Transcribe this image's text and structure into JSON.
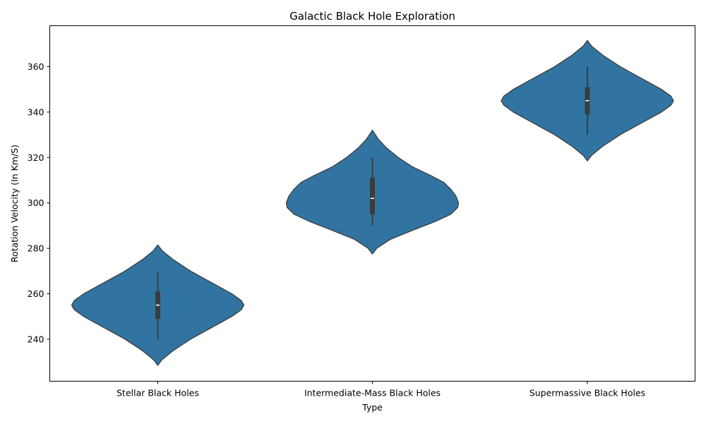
{
  "chart_data": {
    "type": "violin",
    "title": "Galactic Black Hole Exploration",
    "xlabel": "Type",
    "ylabel": "Rotation Velocity (In Km/S)",
    "ylim": [
      221.5,
      378
    ],
    "yticks": [
      240,
      260,
      280,
      300,
      320,
      340,
      360
    ],
    "categories": [
      "Stellar Black Holes",
      "Intermediate-Mass Black Holes",
      "Supermassive Black Holes"
    ],
    "colors": {
      "fill": "#3274a1",
      "stroke": "#3c3c3c",
      "box": "#3c3c3c",
      "median": "#ffffff"
    },
    "grid": false,
    "violins": [
      {
        "category": "Stellar Black Holes",
        "min": 240,
        "q1": 249,
        "median": 255,
        "q3": 261,
        "max": 270,
        "kde_low": 228.5,
        "kde_high": 281.5,
        "profile": [
          [
            228.5,
            0
          ],
          [
            231,
            0.05
          ],
          [
            235,
            0.18
          ],
          [
            240,
            0.38
          ],
          [
            245,
            0.62
          ],
          [
            250,
            0.86
          ],
          [
            253,
            0.97
          ],
          [
            255,
            1.0
          ],
          [
            257,
            0.97
          ],
          [
            260,
            0.86
          ],
          [
            265,
            0.62
          ],
          [
            270,
            0.38
          ],
          [
            275,
            0.18
          ],
          [
            279,
            0.05
          ],
          [
            281.5,
            0
          ]
        ]
      },
      {
        "category": "Intermediate-Mass Black Holes",
        "min": 290,
        "q1": 295,
        "median": 302,
        "q3": 311,
        "max": 320,
        "kde_low": 277.5,
        "kde_high": 332,
        "profile": [
          [
            277.5,
            0
          ],
          [
            280,
            0.05
          ],
          [
            284,
            0.21
          ],
          [
            288,
            0.47
          ],
          [
            292,
            0.74
          ],
          [
            295,
            0.91
          ],
          [
            298,
            0.99
          ],
          [
            300,
            1.0
          ],
          [
            303,
            0.97
          ],
          [
            306,
            0.91
          ],
          [
            309,
            0.83
          ],
          [
            312,
            0.68
          ],
          [
            316,
            0.46
          ],
          [
            320,
            0.3
          ],
          [
            324,
            0.17
          ],
          [
            328,
            0.07
          ],
          [
            332,
            0
          ]
        ]
      },
      {
        "category": "Supermassive Black Holes",
        "min": 330,
        "q1": 339,
        "median": 345,
        "q3": 351,
        "max": 360,
        "kde_low": 318.5,
        "kde_high": 371.5,
        "profile": [
          [
            318.5,
            0
          ],
          [
            321,
            0.05
          ],
          [
            325,
            0.18
          ],
          [
            330,
            0.38
          ],
          [
            335,
            0.62
          ],
          [
            340,
            0.86
          ],
          [
            343,
            0.97
          ],
          [
            345,
            1.0
          ],
          [
            347,
            0.97
          ],
          [
            350,
            0.86
          ],
          [
            355,
            0.62
          ],
          [
            360,
            0.38
          ],
          [
            365,
            0.18
          ],
          [
            369,
            0.05
          ],
          [
            371.5,
            0
          ]
        ]
      }
    ]
  }
}
